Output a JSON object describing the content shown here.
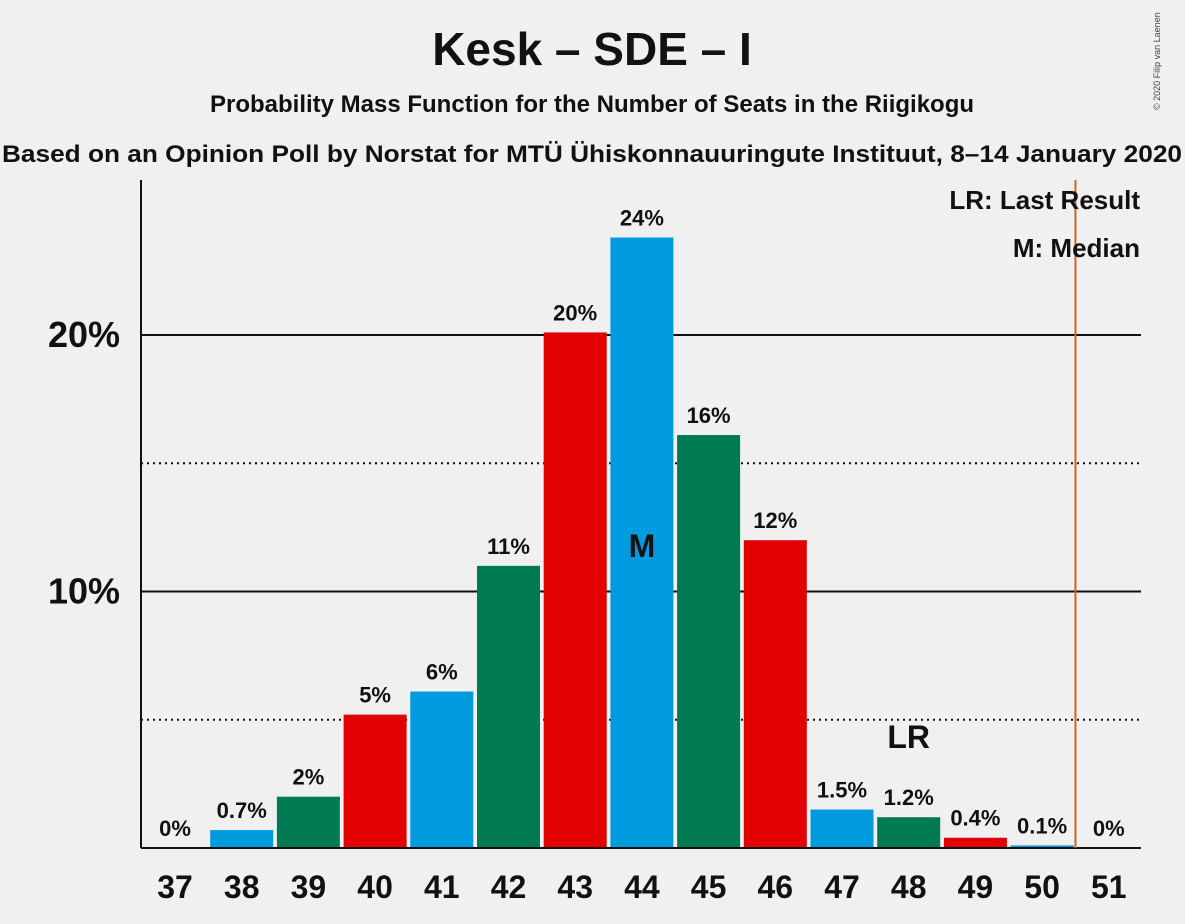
{
  "chart_data": {
    "type": "bar",
    "title": "Kesk – SDE – I",
    "subtitle": "Probability Mass Function for the Number of Seats in the Riigikogu",
    "subtitle2": "Based on an Opinion Poll by Norstat for MTÜ Ühiskonnauuringute Instituut, 8–14 January 2020",
    "copyright": "© 2020 Filip van Laenen",
    "categories": [
      "37",
      "38",
      "39",
      "40",
      "41",
      "42",
      "43",
      "44",
      "45",
      "46",
      "47",
      "48",
      "49",
      "50",
      "51"
    ],
    "values": [
      0,
      0.7,
      2,
      5.2,
      6.1,
      11,
      20.1,
      23.8,
      16.1,
      12,
      1.5,
      1.2,
      0.4,
      0.1,
      0
    ],
    "value_labels": [
      "0%",
      "0.7%",
      "2%",
      "5%",
      "6%",
      "11%",
      "20%",
      "24%",
      "16%",
      "12%",
      "1.5%",
      "1.2%",
      "0.4%",
      "0.1%",
      "0%"
    ],
    "bar_colors": [
      "#009bde",
      "#009bde",
      "#007a52",
      "#e20000",
      "#009bde",
      "#007a52",
      "#e20000",
      "#009bde",
      "#007a52",
      "#e20000",
      "#009bde",
      "#007a52",
      "#e20000",
      "#009bde",
      "#007a52"
    ],
    "ylim": [
      0,
      26
    ],
    "yticks": [
      {
        "value": 10,
        "label": "10%"
      },
      {
        "value": 20,
        "label": "20%"
      }
    ],
    "minor_gridlines": [
      5,
      15
    ],
    "median_index": 7,
    "median_label": "M",
    "last_result_index": 11,
    "last_result_label": "LR",
    "majority_line_seat": 50.5,
    "majority_line_color": "#c8661e",
    "legend": [
      "LR: Last Result",
      "M: Median"
    ],
    "legend_position": "top-right"
  }
}
